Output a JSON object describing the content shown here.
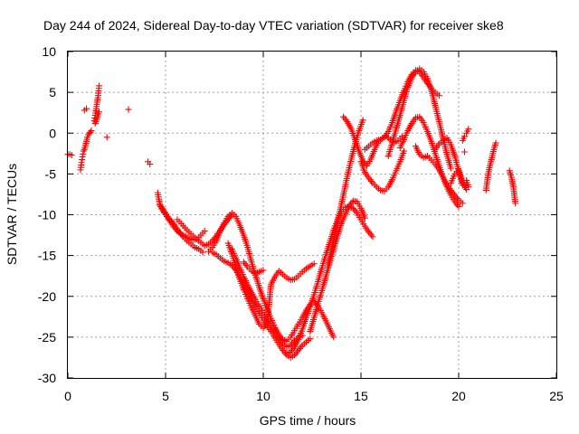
{
  "chart_data": {
    "type": "scatter",
    "title": "Day 244 of 2024, Sidereal Day-to-day VTEC variation (SDTVAR) for receiver ske8",
    "xlabel": "GPS time / hours",
    "ylabel": "SDTVAR / TECUs",
    "xlim": [
      0,
      25
    ],
    "ylim": [
      -30,
      10
    ],
    "x_ticks": [
      "0",
      "5",
      "10",
      "15",
      "20",
      "25"
    ],
    "y_ticks": [
      "10",
      "5",
      "0",
      "-5",
      "-10",
      "-15",
      "-20",
      "-25",
      "-30"
    ],
    "grid": true,
    "marker": "+",
    "marker_color": "#ff0000",
    "series": [
      {
        "name": "s01",
        "x": [
          0.0,
          0.1,
          0.2
        ],
        "y": [
          -2.6,
          -2.6,
          -2.7
        ]
      },
      {
        "name": "s02",
        "x": [
          0.65,
          0.7,
          0.75,
          0.8,
          0.85,
          0.9,
          0.95,
          1.0,
          1.05,
          1.1,
          1.15,
          1.2
        ],
        "y": [
          -4.5,
          -3.6,
          -2.9,
          -2.2,
          -2.0,
          -1.5,
          -1.0,
          -0.5,
          -0.2,
          0.0,
          0.1,
          0.3
        ]
      },
      {
        "name": "s03",
        "x": [
          0.85,
          0.95
        ],
        "y": [
          2.8,
          3.0
        ]
      },
      {
        "name": "s04",
        "x": [
          1.35,
          1.4,
          1.45,
          1.5,
          1.55,
          1.6
        ],
        "y": [
          1.5,
          2.2,
          3.0,
          3.8,
          4.6,
          5.8
        ]
      },
      {
        "name": "s05",
        "x": [
          1.4,
          1.5,
          1.6
        ],
        "y": [
          1.2,
          1.9,
          2.6
        ]
      },
      {
        "name": "s06",
        "x": [
          2.0
        ],
        "y": [
          -0.5
        ]
      },
      {
        "name": "s07",
        "x": [
          3.1
        ],
        "y": [
          2.9
        ]
      },
      {
        "name": "s08",
        "x": [
          4.1,
          4.2
        ],
        "y": [
          -3.5,
          -3.8
        ]
      },
      {
        "name": "s09",
        "x": [
          4.6,
          4.7,
          4.8,
          5.0,
          5.2,
          5.4,
          5.6,
          5.8,
          6.0,
          6.2,
          6.4,
          6.6,
          6.8,
          7.0
        ],
        "y": [
          -7.3,
          -8.6,
          -9.3,
          -10.0,
          -10.7,
          -11.4,
          -12.0,
          -12.4,
          -12.6,
          -12.9,
          -13.1,
          -13.0,
          -12.5,
          -12.0
        ]
      },
      {
        "name": "s10",
        "x": [
          4.7,
          4.9,
          5.1,
          5.3,
          5.5,
          5.7,
          5.9,
          6.1,
          6.3,
          6.5,
          6.7,
          6.9
        ],
        "y": [
          -8.8,
          -9.4,
          -10.2,
          -10.8,
          -11.4,
          -12.1,
          -12.7,
          -13.2,
          -13.6,
          -14.0,
          -14.2,
          -14.6
        ]
      },
      {
        "name": "s11",
        "x": [
          5.6,
          5.8,
          6.0,
          6.2,
          6.4,
          6.6,
          6.8,
          7.0,
          7.2,
          7.4,
          7.6,
          7.8,
          8.0,
          8.2,
          8.4
        ],
        "y": [
          -10.6,
          -11.1,
          -11.6,
          -12.1,
          -12.6,
          -13.0,
          -13.4,
          -13.8,
          -13.6,
          -13.2,
          -12.6,
          -11.9,
          -11.2,
          -10.6,
          -10.0
        ]
      },
      {
        "name": "s12",
        "x": [
          7.2,
          7.4,
          7.6,
          7.8,
          8.0,
          8.2,
          8.4,
          8.6,
          8.8,
          9.0,
          9.2,
          9.4,
          9.6,
          9.8,
          10.0,
          10.2,
          10.4,
          10.6,
          10.8,
          11.0,
          11.2,
          11.4,
          11.6,
          11.8,
          12.0,
          12.2,
          12.4,
          12.6,
          12.8,
          13.0,
          13.2,
          13.4,
          13.6
        ],
        "y": [
          -14.5,
          -14.0,
          -13.2,
          -12.0,
          -11.0,
          -10.2,
          -9.8,
          -10.2,
          -11.3,
          -12.5,
          -14.0,
          -15.8,
          -17.4,
          -18.9,
          -20.3,
          -21.6,
          -22.7,
          -23.8,
          -24.7,
          -25.3,
          -25.5,
          -25.0,
          -24.2,
          -23.4,
          -22.6,
          -21.7,
          -21.0,
          -20.6,
          -21.2,
          -22.0,
          -23.0,
          -24.0,
          -25.0
        ]
      },
      {
        "name": "s13",
        "x": [
          7.4,
          7.6,
          7.8,
          8.0,
          8.2,
          8.4,
          8.6,
          8.8,
          9.0,
          9.2,
          9.4,
          9.6,
          9.8,
          10.0,
          10.2,
          10.4,
          10.6,
          10.8,
          11.0,
          11.2,
          11.4,
          11.6,
          11.8,
          12.0,
          12.2,
          12.4
        ],
        "y": [
          -14.6,
          -14.9,
          -15.3,
          -15.7,
          -15.9,
          -16.2,
          -16.8,
          -17.6,
          -18.5,
          -19.4,
          -20.4,
          -21.3,
          -22.1,
          -22.9,
          -23.6,
          -24.3,
          -25.1,
          -25.9,
          -26.6,
          -27.2,
          -27.5,
          -27.2,
          -26.6,
          -26.0,
          -25.6,
          -25.2
        ]
      },
      {
        "name": "s14",
        "x": [
          8.4,
          8.6,
          8.8,
          9.0,
          9.2,
          9.4,
          9.6,
          9.8,
          10.0,
          10.2,
          10.4,
          10.6,
          10.8,
          11.0,
          11.2,
          11.4,
          11.6,
          11.8,
          12.0
        ],
        "y": [
          -14.2,
          -15.3,
          -16.5,
          -17.6,
          -18.6,
          -19.5,
          -20.4,
          -21.2,
          -22.0,
          -22.8,
          -23.6,
          -24.4,
          -25.2,
          -25.8,
          -26.2,
          -26.0,
          -25.4,
          -25.0,
          -24.8
        ]
      },
      {
        "name": "s15",
        "x": [
          8.2,
          8.4,
          8.6,
          8.8,
          9.0,
          9.2,
          9.4,
          9.6,
          9.8,
          10.0,
          10.2,
          10.4,
          10.6,
          10.8,
          11.0,
          11.2,
          11.4,
          11.6,
          11.8,
          12.0,
          12.2,
          12.4,
          12.6
        ],
        "y": [
          -13.5,
          -14.8,
          -16.4,
          -17.9,
          -19.2,
          -20.3,
          -21.4,
          -22.4,
          -23.4,
          -23.9,
          -23.2,
          -18.5,
          -17.6,
          -16.9,
          -17.3,
          -17.7,
          -18.0,
          -17.9,
          -17.5,
          -17.0,
          -16.6,
          -16.3,
          -16.0
        ]
      },
      {
        "name": "s16",
        "x": [
          9.0,
          9.2,
          9.4,
          9.6,
          9.8,
          10.0
        ],
        "y": [
          -15.8,
          -16.4,
          -16.9,
          -17.2,
          -17.0,
          -16.8
        ]
      },
      {
        "name": "s17",
        "x": [
          11.2,
          11.4,
          11.6,
          11.8,
          12.0,
          12.2,
          12.4,
          12.6,
          12.8,
          13.0,
          13.2,
          13.4,
          13.6,
          13.8,
          14.0,
          14.2,
          14.4,
          14.6,
          14.8,
          15.0,
          15.2,
          15.4,
          15.6
        ],
        "y": [
          -27.0,
          -26.8,
          -26.2,
          -25.3,
          -24.0,
          -22.6,
          -21.3,
          -19.8,
          -18.2,
          -16.5,
          -14.9,
          -13.4,
          -11.9,
          -10.6,
          -9.6,
          -9.1,
          -9.0,
          -9.2,
          -9.8,
          -10.6,
          -11.4,
          -12.1,
          -12.7
        ]
      },
      {
        "name": "s18",
        "x": [
          12.4,
          12.6,
          12.8,
          13.0,
          13.2,
          13.4,
          13.6,
          13.8,
          14.0,
          14.2,
          14.4,
          14.6,
          14.8,
          15.0,
          15.2
        ],
        "y": [
          -24.3,
          -22.6,
          -20.9,
          -19.3,
          -17.6,
          -15.9,
          -14.3,
          -12.6,
          -11.1,
          -9.9,
          -8.9,
          -8.3,
          -8.4,
          -9.2,
          -10.4
        ]
      },
      {
        "name": "s19",
        "x": [
          13.3,
          13.5,
          13.7,
          13.9,
          14.1,
          14.3,
          14.5,
          14.7,
          14.9,
          15.1
        ],
        "y": [
          -16.4,
          -14.2,
          -12.0,
          -9.8,
          -7.6,
          -5.3,
          -3.2,
          -1.3,
          0.3,
          1.6
        ]
      },
      {
        "name": "s20",
        "x": [
          14.1,
          14.3,
          14.5,
          14.7,
          14.9,
          15.1,
          15.3,
          15.5,
          15.7,
          15.9,
          16.1,
          16.3,
          16.5,
          16.7,
          16.9,
          17.1
        ],
        "y": [
          2.0,
          1.4,
          0.5,
          -0.8,
          -2.2,
          -3.4,
          -4.0,
          -3.2,
          -2.0,
          -1.0,
          -0.6,
          -0.4,
          -0.8,
          -1.2,
          -0.9,
          -0.4
        ]
      },
      {
        "name": "s21",
        "x": [
          15.0,
          15.2,
          15.4,
          15.6,
          15.8,
          16.0,
          16.2,
          16.4,
          16.6,
          16.8,
          17.0,
          17.2
        ],
        "y": [
          -3.5,
          -4.8,
          -5.5,
          -6.1,
          -6.6,
          -7.0,
          -7.1,
          -6.6,
          -5.7,
          -4.6,
          -3.5,
          -2.2
        ]
      },
      {
        "name": "s22",
        "x": [
          15.2,
          15.4,
          15.6,
          15.8,
          16.0,
          16.2,
          16.4,
          16.6,
          16.8,
          17.0,
          17.2,
          17.4,
          17.6,
          17.8,
          18.0,
          18.2,
          18.4,
          18.6,
          18.8,
          19.0
        ],
        "y": [
          -2.0,
          -1.6,
          -1.2,
          -0.9,
          -0.8,
          -0.5,
          0.2,
          1.3,
          2.7,
          4.0,
          5.2,
          6.3,
          7.2,
          7.7,
          7.5,
          6.8,
          6.1,
          5.5,
          5.0,
          4.6
        ]
      },
      {
        "name": "s23",
        "x": [
          16.4,
          16.6,
          16.8,
          17.0,
          17.2,
          17.4,
          17.6,
          17.8,
          18.0,
          18.2,
          18.4,
          18.6,
          18.8,
          19.0,
          19.2,
          19.4,
          19.6
        ],
        "y": [
          -2.8,
          -1.2,
          0.5,
          2.2,
          4.0,
          5.6,
          6.8,
          7.5,
          7.9,
          7.5,
          6.7,
          5.3,
          3.4,
          1.4,
          -0.6,
          -2.6,
          -4.3
        ]
      },
      {
        "name": "s24",
        "x": [
          17.0,
          17.2,
          17.4,
          17.6,
          17.8,
          18.0,
          18.2,
          18.4,
          18.6,
          18.8,
          19.0,
          19.2,
          19.4,
          19.6,
          19.8,
          20.0
        ],
        "y": [
          -1.8,
          -0.8,
          0.3,
          1.2,
          1.9,
          2.0,
          1.3,
          0.2,
          -1.0,
          -2.5,
          -4.0,
          -5.4,
          -6.6,
          -7.6,
          -8.4,
          -9.0
        ]
      },
      {
        "name": "s25",
        "x": [
          17.8,
          18.0,
          18.2,
          18.4,
          18.6,
          18.8,
          19.0,
          19.2,
          19.4,
          19.6,
          19.8,
          20.0,
          20.2
        ],
        "y": [
          -1.6,
          -2.6,
          -3.0,
          -2.8,
          -3.3,
          -3.8,
          -4.5,
          -5.4,
          -6.3,
          -7.0,
          -7.6,
          -8.2,
          -8.6
        ]
      },
      {
        "name": "s26",
        "x": [
          18.8,
          19.0,
          19.2,
          19.4,
          19.6,
          19.8,
          20.0,
          20.2
        ],
        "y": [
          -2.0,
          -1.3,
          -0.9,
          -0.6,
          -1.4,
          -2.8,
          -4.6,
          -6.4
        ]
      },
      {
        "name": "s27",
        "x": [
          19.6,
          19.8,
          20.0,
          20.2,
          20.4
        ],
        "y": [
          -6.1,
          -5.0,
          -4.5,
          -6.0,
          -6.9
        ]
      },
      {
        "name": "s28",
        "x": [
          20.2,
          20.3,
          20.4,
          20.5
        ],
        "y": [
          -0.9,
          -0.4,
          0.0,
          0.5
        ]
      },
      {
        "name": "s29",
        "x": [
          20.3
        ],
        "y": [
          -2.3
        ]
      },
      {
        "name": "s30",
        "x": [
          20.4,
          20.5
        ],
        "y": [
          -5.8,
          -6.6
        ]
      },
      {
        "name": "s31",
        "x": [
          21.4,
          21.5,
          21.6,
          21.7,
          21.8,
          21.9
        ],
        "y": [
          -7.0,
          -5.2,
          -4.0,
          -3.0,
          -2.0,
          -1.2
        ]
      },
      {
        "name": "s32",
        "x": [
          22.6,
          22.7,
          22.8,
          22.9
        ],
        "y": [
          -4.6,
          -5.4,
          -6.6,
          -8.6
        ]
      }
    ]
  }
}
